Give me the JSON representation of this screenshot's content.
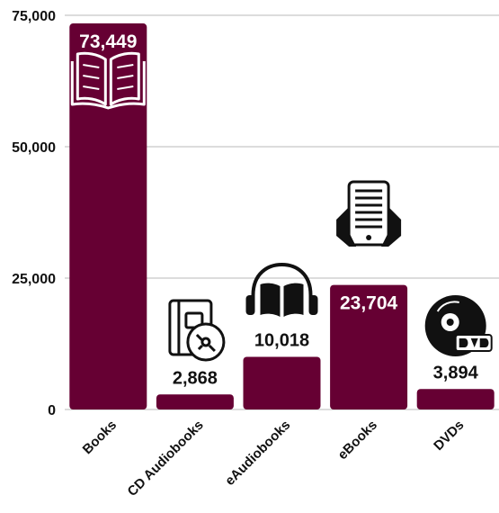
{
  "chart_data": {
    "type": "bar",
    "title": "",
    "xlabel": "",
    "ylabel": "",
    "categories": [
      "Books",
      "CD Audiobooks",
      "eAudiobooks",
      "eBooks",
      "DVDs"
    ],
    "values": [
      73449,
      2868,
      10018,
      23704,
      3894
    ],
    "value_labels": [
      "73,449",
      "2,868",
      "10,018",
      "23,704",
      "3,894"
    ],
    "category_icons": [
      "open-book-icon",
      "cd-audiobook-icon",
      "headphones-book-icon",
      "ereader-icon",
      "dvd-disc-icon"
    ],
    "ylim": [
      0,
      75000
    ],
    "yticks": [
      0,
      25000,
      50000,
      75000
    ],
    "ytick_labels": [
      "0",
      "25,000",
      "50,000",
      "75,000"
    ],
    "grid": true,
    "legend": "none",
    "colors": {
      "bar": "#660033",
      "grid": "#b8b8b8",
      "text": "#111111"
    }
  }
}
